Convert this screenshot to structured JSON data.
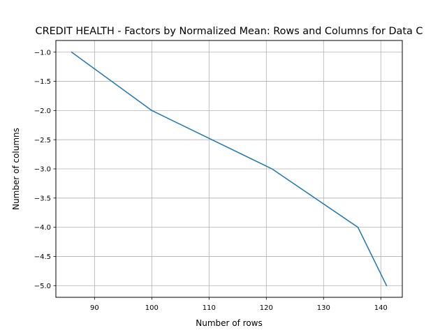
{
  "chart_data": {
    "type": "line",
    "title": "CREDIT HEALTH - Factors by Normalized Mean: Rows and Columns for Data C",
    "xlabel": "Number of rows",
    "ylabel": "Number of columns",
    "xlim": [
      83.25,
      143.75
    ],
    "ylim": [
      -5.2,
      -0.8
    ],
    "xticks": [
      90,
      100,
      110,
      120,
      130,
      140
    ],
    "yticks": [
      -1.0,
      -1.5,
      -2.0,
      -2.5,
      -3.0,
      -3.5,
      -4.0,
      -4.5,
      -5.0
    ],
    "xtick_labels": [
      "90",
      "100",
      "110",
      "120",
      "130",
      "140"
    ],
    "ytick_labels": [
      "−1.0",
      "−1.5",
      "−2.0",
      "−2.5",
      "−3.0",
      "−3.5",
      "−4.0",
      "−4.5",
      "−5.0"
    ],
    "grid": true,
    "series": [
      {
        "color": "#1f77b4",
        "x": [
          86,
          100,
          121,
          136,
          141
        ],
        "y": [
          -1,
          -2,
          -3,
          -4,
          -5
        ]
      }
    ]
  }
}
